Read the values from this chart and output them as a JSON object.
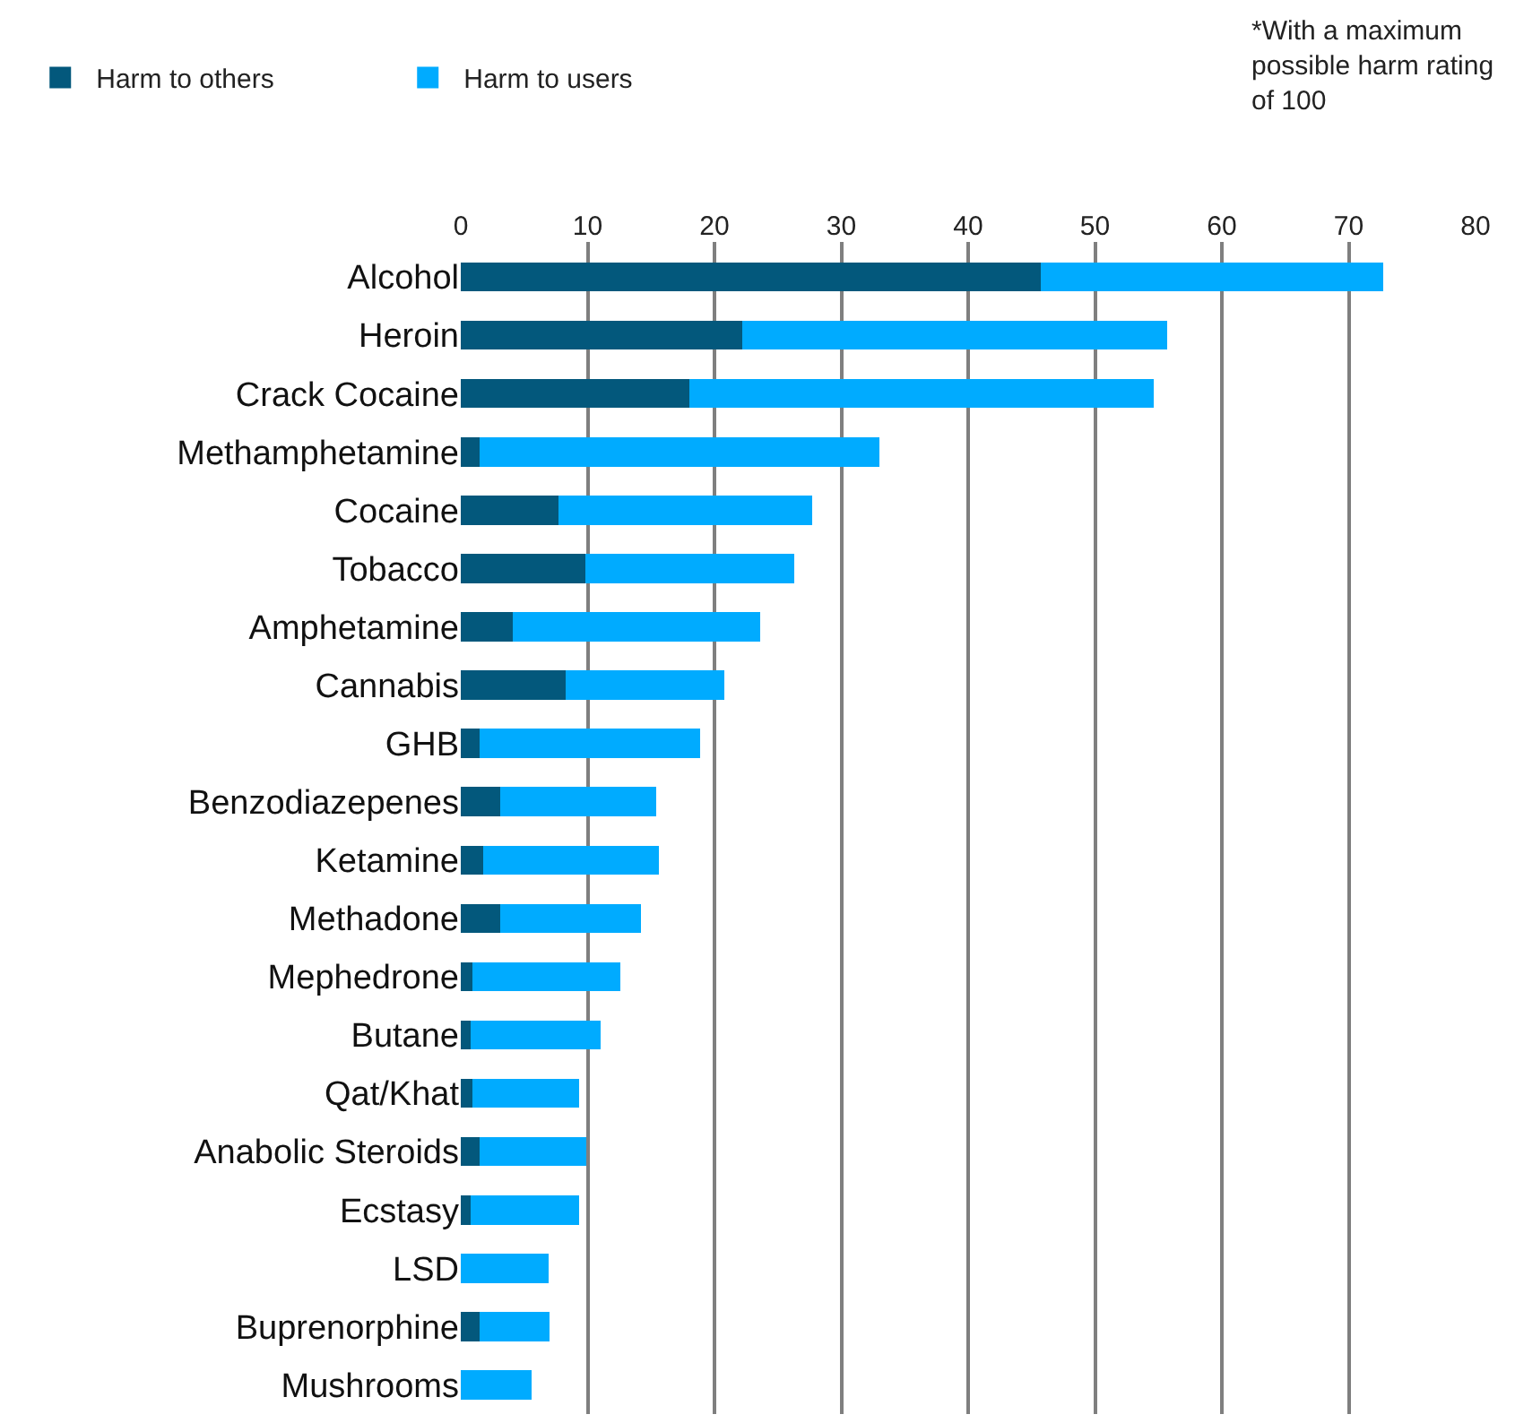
{
  "chart_data": {
    "type": "bar",
    "orientation": "horizontal",
    "stacked": true,
    "categories": [
      "Alcohol",
      "Heroin",
      "Crack Cocaine",
      "Methamphetamine",
      "Cocaine",
      "Tobacco",
      "Amphetamine",
      "Cannabis",
      "GHB",
      "Benzodiazepenes",
      "Ketamine",
      "Methadone",
      "Mephedrone",
      "Butane",
      "Qat/Khat",
      "Anabolic Steroids",
      "Ecstasy",
      "LSD",
      "Buprenorphine",
      "Mushrooms"
    ],
    "series": [
      {
        "name": "Harm to others",
        "color": "#03587c",
        "values": [
          45.7,
          22.2,
          18,
          1.5,
          7.7,
          9.8,
          4.1,
          8.3,
          1.5,
          3.1,
          1.8,
          3.1,
          0.9,
          0.8,
          0.9,
          1.5,
          0.8,
          0,
          1.5,
          0
        ]
      },
      {
        "name": "Harm to users",
        "color": "#00abff",
        "values": [
          27,
          33.5,
          36.6,
          31.5,
          20,
          16.5,
          19.5,
          12.5,
          17.4,
          12.3,
          13.8,
          11.1,
          11.7,
          10.2,
          8.4,
          8.4,
          8.5,
          6.9,
          5.5,
          5.6
        ]
      }
    ],
    "xlim": [
      0,
      80
    ],
    "xticks": [
      0,
      10,
      20,
      30,
      40,
      50,
      60,
      70,
      80
    ],
    "grid": "x",
    "legend": "top left",
    "annotations": [
      "*With a maximum possible harm rating of 100"
    ]
  }
}
